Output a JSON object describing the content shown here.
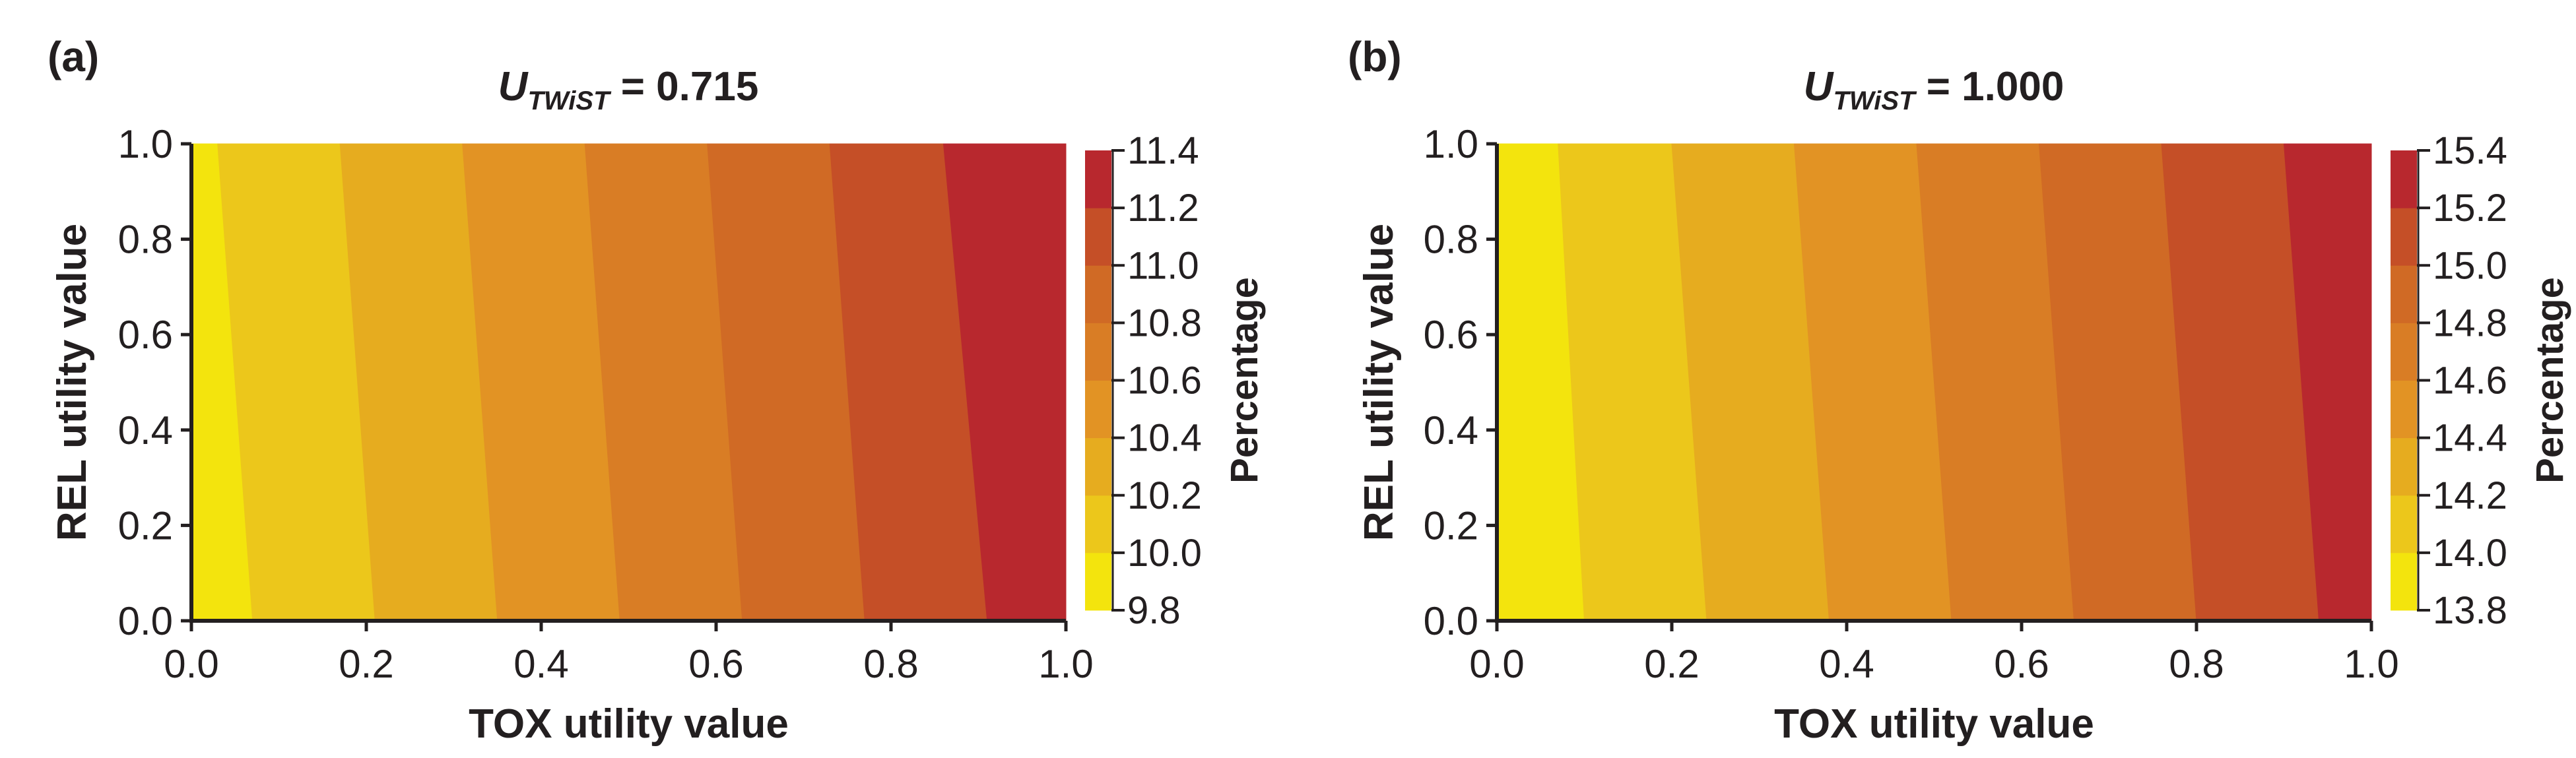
{
  "chart_data": [
    {
      "type": "contour",
      "panel_label": "(a)",
      "title": {
        "main": "U",
        "sub": "TWiST",
        "rest": " = 0.715"
      },
      "xlabel": "TOX utility value",
      "ylabel": "REL utility value",
      "xlim": [
        0.0,
        1.0
      ],
      "ylim": [
        0.0,
        1.0
      ],
      "xticks": [
        "0.0",
        "0.2",
        "0.4",
        "0.6",
        "0.8",
        "1.0"
      ],
      "yticks": [
        "0.0",
        "0.2",
        "0.4",
        "0.6",
        "0.8",
        "1.0"
      ],
      "colorbar_title": "Percentage",
      "colorbar_ticks": [
        "9.8",
        "10.0",
        "10.2",
        "10.4",
        "10.6",
        "10.8",
        "11.0",
        "11.2",
        "11.4"
      ],
      "levels": [
        9.8,
        10.0,
        10.2,
        10.4,
        10.6,
        10.8,
        11.0,
        11.2,
        11.4
      ],
      "level_colors": [
        "#f3e40d",
        "#ecc71b",
        "#e6ac1f",
        "#e29324",
        "#d97d25",
        "#d06a25",
        "#c54f27",
        "#b8282e"
      ],
      "contour_boundaries_x": [
        {
          "at_y0": 0.07,
          "at_y1": 0.03
        },
        {
          "at_y0": 0.21,
          "at_y1": 0.17
        },
        {
          "at_y0": 0.35,
          "at_y1": 0.31
        },
        {
          "at_y0": 0.49,
          "at_y1": 0.45
        },
        {
          "at_y0": 0.63,
          "at_y1": 0.59
        },
        {
          "at_y0": 0.77,
          "at_y1": 0.73
        },
        {
          "at_y0": 0.91,
          "at_y1": 0.86
        }
      ]
    },
    {
      "type": "contour",
      "panel_label": "(b)",
      "title": {
        "main": "U",
        "sub": "TWiST",
        "rest": " = 1.000"
      },
      "xlabel": "TOX utility value",
      "ylabel": "REL utility value",
      "xlim": [
        0.0,
        1.0
      ],
      "ylim": [
        0.0,
        1.0
      ],
      "xticks": [
        "0.0",
        "0.2",
        "0.4",
        "0.6",
        "0.8",
        "1.0"
      ],
      "yticks": [
        "0.0",
        "0.2",
        "0.4",
        "0.6",
        "0.8",
        "1.0"
      ],
      "colorbar_title": "Percentage",
      "colorbar_ticks": [
        "13.8",
        "14.0",
        "14.2",
        "14.4",
        "14.6",
        "14.8",
        "15.0",
        "15.2",
        "15.4"
      ],
      "levels": [
        13.8,
        14.0,
        14.2,
        14.4,
        14.6,
        14.8,
        15.0,
        15.2,
        15.4
      ],
      "level_colors": [
        "#f3e40d",
        "#ecc71b",
        "#e6ac1f",
        "#e29324",
        "#d97d25",
        "#d06a25",
        "#c54f27",
        "#b8282e"
      ],
      "contour_boundaries_x": [
        {
          "at_y0": 0.1,
          "at_y1": 0.07
        },
        {
          "at_y0": 0.24,
          "at_y1": 0.2
        },
        {
          "at_y0": 0.38,
          "at_y1": 0.34
        },
        {
          "at_y0": 0.52,
          "at_y1": 0.48
        },
        {
          "at_y0": 0.66,
          "at_y1": 0.62
        },
        {
          "at_y0": 0.8,
          "at_y1": 0.76
        },
        {
          "at_y0": 0.94,
          "at_y1": 0.9
        }
      ]
    }
  ]
}
